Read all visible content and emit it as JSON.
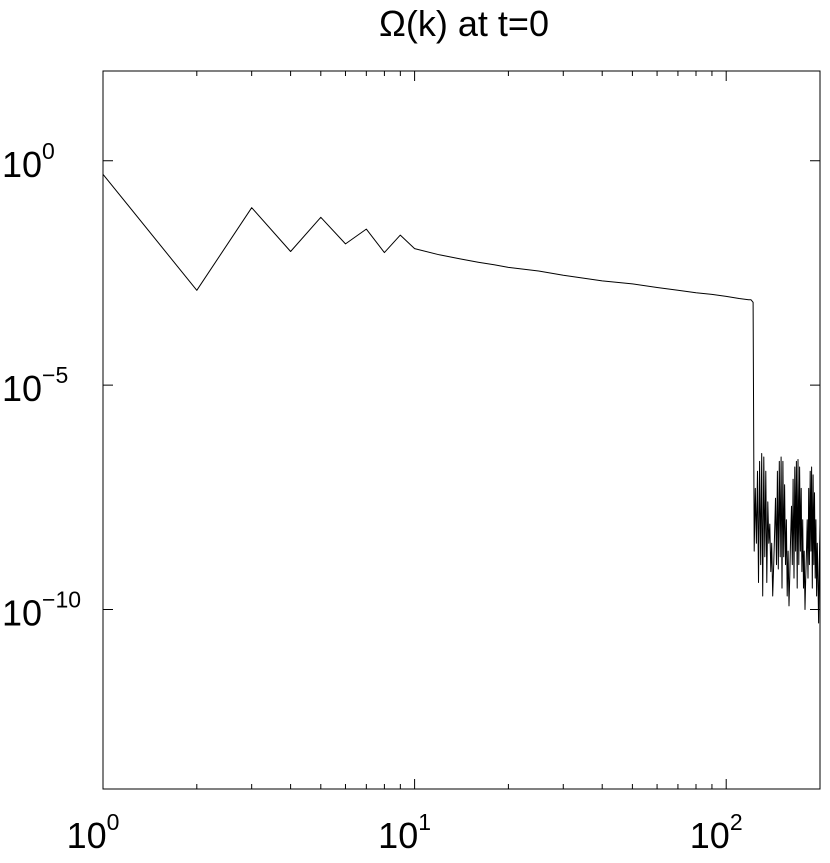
{
  "chart_data": {
    "type": "line",
    "title": "Ω(k) at t=0",
    "xlabel": "",
    "ylabel": "",
    "xscale": "log",
    "yscale": "log",
    "xlim": [
      1,
      200
    ],
    "ylim": [
      1e-14,
      100.0
    ],
    "grid": false,
    "x_ticks": [
      {
        "base": "10",
        "exp": "0",
        "value": 1
      },
      {
        "base": "10",
        "exp": "1",
        "value": 10
      },
      {
        "base": "10",
        "exp": "2",
        "value": 100
      }
    ],
    "y_ticks": [
      {
        "base": "10",
        "exp": "0",
        "value": 1
      },
      {
        "base": "10",
        "exp": "−5",
        "value": 1e-05
      },
      {
        "base": "10",
        "exp": "−10",
        "value": 1e-10
      }
    ],
    "series": [
      {
        "color": "#000000",
        "x": [
          1,
          2,
          3,
          4,
          5,
          6,
          7,
          8,
          9,
          10,
          12,
          14,
          16,
          18,
          20,
          25,
          30,
          35,
          40,
          50,
          60,
          70,
          80,
          90,
          100,
          110,
          118,
          120,
          122,
          123,
          124,
          125,
          126,
          127,
          128,
          129,
          130,
          131,
          132,
          133,
          134,
          135,
          136,
          137,
          138,
          139,
          140,
          141,
          142,
          143,
          144,
          145,
          146,
          147,
          148,
          149,
          150,
          151,
          152,
          153,
          154,
          155,
          156,
          157,
          158,
          159,
          160,
          161,
          162,
          163,
          164,
          165,
          166,
          167,
          168,
          169,
          170,
          171,
          172,
          173,
          174,
          175,
          176,
          177,
          178,
          179,
          180,
          181,
          182,
          183,
          184,
          185,
          186,
          187,
          188,
          189,
          190,
          191,
          192,
          193,
          194,
          195,
          196,
          197,
          198,
          199,
          200
        ],
        "y": [
          0.5,
          0.0013,
          0.09,
          0.0095,
          0.055,
          0.014,
          0.03,
          0.009,
          0.022,
          0.011,
          0.008,
          0.0065,
          0.0055,
          0.0048,
          0.0042,
          0.0035,
          0.0028,
          0.0024,
          0.0021,
          0.0018,
          0.0015,
          0.0013,
          0.00115,
          0.00105,
          0.00095,
          0.00085,
          0.0008,
          0.0008,
          0.0007,
          2e-09,
          5e-08,
          3e-09,
          1.2e-07,
          4e-10,
          2e-07,
          1e-09,
          3e-07,
          2e-10,
          2.5e-07,
          1.5e-09,
          1.2e-07,
          4e-10,
          2.5e-08,
          3e-09,
          8e-09,
          7e-10,
          3e-09,
          2e-10,
          1e-09,
          5e-09,
          3e-08,
          1e-09,
          1.2e-07,
          8e-10,
          2e-07,
          1.5e-09,
          2.5e-07,
          3e-10,
          2e-07,
          1.5e-09,
          6e-08,
          1e-09,
          1e-08,
          2e-10,
          2e-09,
          1.2e-10,
          6e-10,
          4e-09,
          2e-08,
          1e-09,
          8e-08,
          5e-10,
          1.5e-07,
          2e-09,
          2e-07,
          3e-10,
          2.2e-07,
          1e-09,
          1.5e-07,
          2e-09,
          5e-08,
          7e-10,
          1e-08,
          3e-10,
          2e-09,
          1e-10,
          5e-10,
          2e-09,
          1e-08,
          5e-10,
          5e-08,
          1e-09,
          1.2e-07,
          2e-09,
          1.5e-07,
          3e-10,
          1e-07,
          1e-09,
          4e-08,
          5e-10,
          1e-08,
          2e-10,
          3e-09,
          4e-10,
          5e-11,
          1e-09,
          8e-09
        ]
      }
    ]
  }
}
